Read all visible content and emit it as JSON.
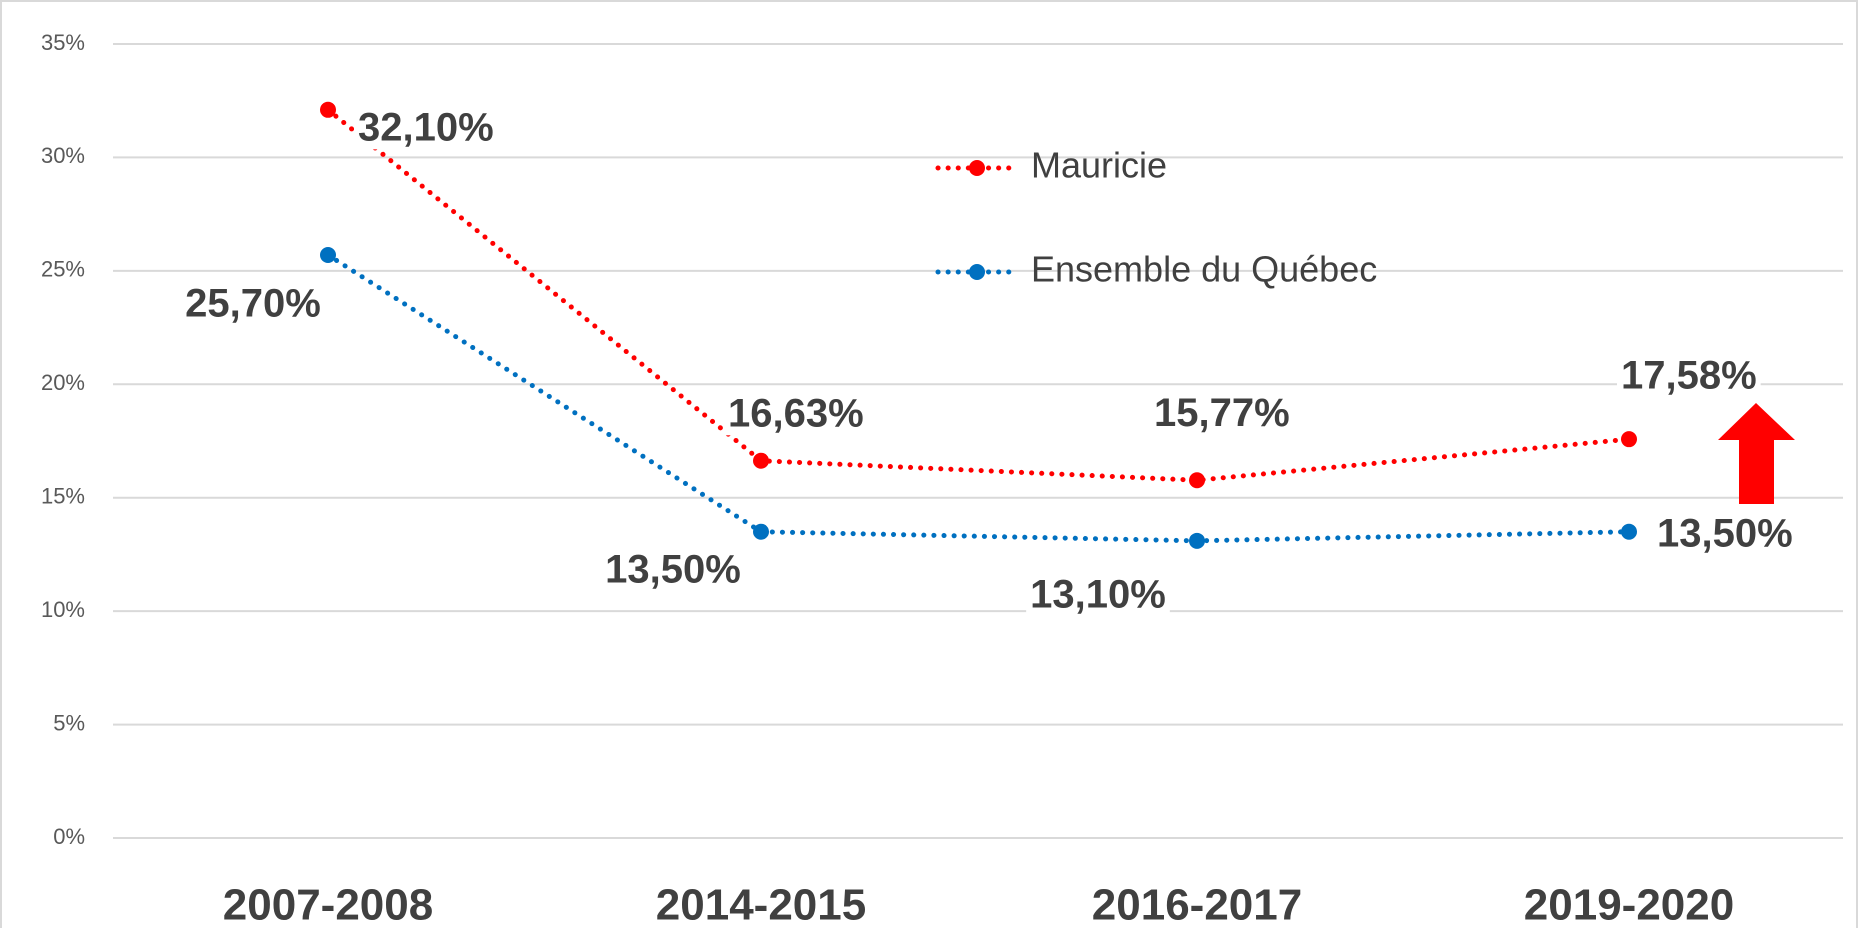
{
  "chart_data": {
    "type": "line",
    "categories": [
      "2007-2008",
      "2014-2015",
      "2016-2017",
      "2019-2020"
    ],
    "series": [
      {
        "name": "Mauricie",
        "color": "#ff0000",
        "values": [
          32.1,
          16.63,
          15.77,
          17.58
        ],
        "value_labels": [
          "32,10%",
          "16,63%",
          "15,77%",
          "17,58%"
        ]
      },
      {
        "name": "Ensemble du Québec",
        "color": "#0070c0",
        "values": [
          25.7,
          13.5,
          13.1,
          13.5
        ],
        "value_labels": [
          "25,70%",
          "13,50%",
          "13,10%",
          "13,50%"
        ]
      }
    ],
    "ylim": [
      0,
      35
    ],
    "yticks": [
      {
        "value": 0,
        "label": "0%"
      },
      {
        "value": 5,
        "label": "5%"
      },
      {
        "value": 10,
        "label": "10%"
      },
      {
        "value": 15,
        "label": "15%"
      },
      {
        "value": 20,
        "label": "20%"
      },
      {
        "value": 25,
        "label": "25%"
      },
      {
        "value": 30,
        "label": "30%"
      },
      {
        "value": 35,
        "label": "35%"
      }
    ],
    "grid": true,
    "legend": "top"
  }
}
